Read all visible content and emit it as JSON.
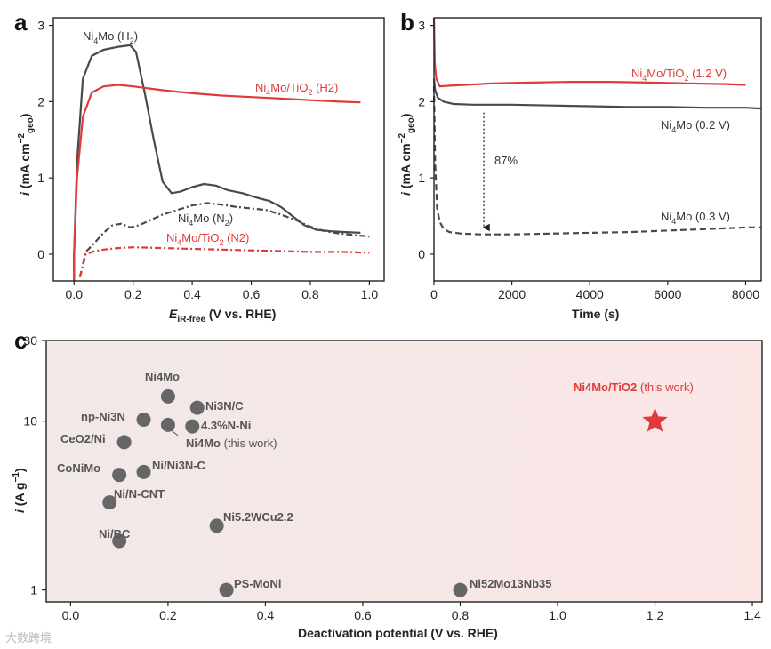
{
  "panels": {
    "a": "a",
    "b": "b",
    "c": "c"
  },
  "colors": {
    "red": "#e03a3a",
    "dark": "#4a4a4a",
    "point": "#666666",
    "bgTint": "#fbecec"
  },
  "chart_data": [
    {
      "id": "a",
      "type": "line",
      "xlabel_main": "E",
      "xlabel_sub": "iR-free",
      "xlabel_rest": " (V vs. RHE)",
      "ylabel_i": "i",
      "ylabel_rest": " (mA cm",
      "ylabel_sup": "−2",
      "ylabel_sub": "geo",
      "ylabel_close": ")",
      "xlim": [
        -0.07,
        1.05
      ],
      "ylim": [
        -0.35,
        3.1
      ],
      "xticks": [
        0.0,
        0.2,
        0.4,
        0.6,
        0.8,
        1.0
      ],
      "xtick_labels": [
        "0.0",
        "0.2",
        "0.4",
        "0.6",
        "0.8",
        "1.0"
      ],
      "yticks": [
        0,
        1,
        2,
        3
      ],
      "ytick_labels": [
        "0",
        "1",
        "2",
        "3"
      ],
      "series": [
        {
          "name": "Ni4Mo (H2)",
          "color": "#4a4a4a",
          "dash": "solid",
          "x": [
            0.0,
            0.0,
            0.01,
            0.03,
            0.06,
            0.1,
            0.15,
            0.19,
            0.21,
            0.24,
            0.27,
            0.3,
            0.33,
            0.36,
            0.4,
            0.44,
            0.48,
            0.52,
            0.57,
            0.62,
            0.66,
            0.7,
            0.74,
            0.78,
            0.82,
            0.87,
            0.92,
            0.97
          ],
          "y": [
            -0.35,
            0.0,
            1.2,
            2.3,
            2.6,
            2.68,
            2.72,
            2.74,
            2.65,
            2.1,
            1.5,
            0.95,
            0.8,
            0.82,
            0.88,
            0.92,
            0.9,
            0.84,
            0.8,
            0.74,
            0.7,
            0.62,
            0.5,
            0.38,
            0.32,
            0.3,
            0.29,
            0.28
          ]
        },
        {
          "name": "Ni4Mo/TiO2 (H2)",
          "color": "#e03a3a",
          "dash": "solid",
          "x": [
            0.0,
            0.0,
            0.01,
            0.03,
            0.06,
            0.1,
            0.15,
            0.2,
            0.3,
            0.4,
            0.5,
            0.6,
            0.7,
            0.8,
            0.9,
            0.97
          ],
          "y": [
            -0.35,
            0.0,
            1.0,
            1.8,
            2.12,
            2.2,
            2.22,
            2.2,
            2.15,
            2.11,
            2.08,
            2.06,
            2.04,
            2.02,
            2.0,
            1.99
          ]
        },
        {
          "name": "Ni4Mo (N2)",
          "color": "#4a4a4a",
          "dash": "dashdot",
          "x": [
            0.02,
            0.04,
            0.07,
            0.1,
            0.13,
            0.16,
            0.19,
            0.22,
            0.26,
            0.3,
            0.35,
            0.4,
            0.45,
            0.5,
            0.55,
            0.6,
            0.65,
            0.7,
            0.75,
            0.8,
            0.85,
            0.9,
            0.95,
            1.0
          ],
          "y": [
            -0.3,
            0.03,
            0.15,
            0.28,
            0.38,
            0.4,
            0.35,
            0.38,
            0.45,
            0.52,
            0.58,
            0.64,
            0.67,
            0.65,
            0.62,
            0.6,
            0.58,
            0.52,
            0.45,
            0.36,
            0.3,
            0.27,
            0.25,
            0.23
          ]
        },
        {
          "name": "Ni4Mo/TiO2 (N2)",
          "color": "#e03a3a",
          "dash": "dashdot",
          "x": [
            0.02,
            0.04,
            0.07,
            0.1,
            0.15,
            0.2,
            0.3,
            0.4,
            0.5,
            0.6,
            0.7,
            0.8,
            0.9,
            1.0
          ],
          "y": [
            -0.3,
            0.0,
            0.04,
            0.06,
            0.08,
            0.09,
            0.08,
            0.07,
            0.06,
            0.05,
            0.04,
            0.03,
            0.03,
            0.02
          ]
        }
      ],
      "annotations": [
        {
          "pre": "Ni",
          "sub": "4",
          "post": "Mo (H",
          "sub2": "2",
          "end": ")",
          "color": "dark"
        },
        {
          "pre": "Ni",
          "sub": "4",
          "post": "Mo/TiO",
          "sub2": "2",
          "end": " (H2)",
          "color": "red"
        },
        {
          "pre": "Ni",
          "sub": "4",
          "post": "Mo (N",
          "sub2": "2",
          "end": ")",
          "color": "dark"
        },
        {
          "pre": "Ni",
          "sub": "4",
          "post": "Mo/TiO",
          "sub2": "2",
          "end": " (N2)",
          "color": "red"
        }
      ]
    },
    {
      "id": "b",
      "type": "line",
      "xlabel": "Time (s)",
      "ylabel_i": "i",
      "ylabel_rest": " (mA cm",
      "ylabel_sup": "−2",
      "ylabel_sub": "geo",
      "ylabel_close": ")",
      "xlim": [
        0,
        8400
      ],
      "ylim": [
        -0.35,
        3.1
      ],
      "xticks": [
        0,
        2000,
        4000,
        6000,
        8000
      ],
      "xtick_labels": [
        "0",
        "2000",
        "4000",
        "6000",
        "8000"
      ],
      "yticks": [
        0,
        1,
        2,
        3
      ],
      "ytick_labels": [
        "0",
        "1",
        "2",
        "3"
      ],
      "series": [
        {
          "name": "Ni4Mo/TiO2 (1.2 V)",
          "color": "#e03a3a",
          "dash": "solid",
          "x": [
            0,
            20,
            60,
            150,
            400,
            800,
            1500,
            2500,
            3500,
            4500,
            5500,
            6500,
            7500,
            8000
          ],
          "y": [
            3.1,
            2.5,
            2.3,
            2.2,
            2.21,
            2.22,
            2.24,
            2.25,
            2.26,
            2.26,
            2.25,
            2.24,
            2.23,
            2.22
          ]
        },
        {
          "name": "Ni4Mo (0.2 V)",
          "color": "#4a4a4a",
          "dash": "solid",
          "x": [
            0,
            30,
            100,
            250,
            500,
            1000,
            2000,
            3000,
            4000,
            5000,
            6000,
            7000,
            8000,
            8400
          ],
          "y": [
            2.3,
            2.15,
            2.05,
            2.0,
            1.97,
            1.96,
            1.96,
            1.95,
            1.94,
            1.93,
            1.93,
            1.92,
            1.92,
            1.91
          ]
        },
        {
          "name": "Ni4Mo (0.3 V)",
          "color": "#4a4a4a",
          "dash": "dashed",
          "x": [
            0,
            30,
            80,
            150,
            250,
            400,
            700,
            1200,
            2000,
            3000,
            4000,
            5000,
            6000,
            7000,
            8000,
            8400
          ],
          "y": [
            2.2,
            1.2,
            0.6,
            0.42,
            0.33,
            0.29,
            0.27,
            0.26,
            0.26,
            0.27,
            0.28,
            0.29,
            0.31,
            0.33,
            0.35,
            0.35
          ]
        }
      ],
      "arrow": {
        "x": 1280,
        "y_from": 1.95,
        "y_to": 0.28,
        "label": "87%"
      },
      "annotations": [
        {
          "pre": "Ni",
          "sub": "4",
          "post": "Mo/TiO",
          "sub2": "2",
          "end": " (1.2 V)",
          "color": "red"
        },
        {
          "pre": "Ni",
          "sub": "4",
          "post": "Mo (0.2 V)",
          "color": "dark"
        },
        {
          "pre": "Ni",
          "sub": "4",
          "post": "Mo (0.3 V)",
          "color": "dark"
        }
      ]
    },
    {
      "id": "c",
      "type": "scatter",
      "xlabel": "Deactivation potential (V vs. RHE)",
      "ylabel_i": "i",
      "ylabel_rest": " (A g",
      "ylabel_sup": "−1",
      "ylabel_close": ")",
      "yscale": "log",
      "xlim": [
        -0.05,
        1.42
      ],
      "ylim": [
        0.85,
        30
      ],
      "xticks": [
        0.0,
        0.2,
        0.4,
        0.6,
        0.8,
        1.0,
        1.2,
        1.4
      ],
      "xtick_labels": [
        "0.0",
        "0.2",
        "0.4",
        "0.6",
        "0.8",
        "1.0",
        "1.2",
        "1.4"
      ],
      "yticks": [
        1,
        10,
        30
      ],
      "ytick_labels": [
        "1",
        "10",
        "30"
      ],
      "points": [
        {
          "label": "Ni4Mo",
          "x": 0.2,
          "y": 14.0
        },
        {
          "label": "Ni3N/C",
          "x": 0.26,
          "y": 12.0
        },
        {
          "label": "np-Ni3N",
          "x": 0.15,
          "y": 10.2
        },
        {
          "label": "Ni4Mo (this work)",
          "x": 0.2,
          "y": 9.5
        },
        {
          "label": "4.3%N-Ni",
          "x": 0.25,
          "y": 9.3
        },
        {
          "label": "CeO2/Ni",
          "x": 0.11,
          "y": 7.5
        },
        {
          "label": "Ni/Ni3N-C",
          "x": 0.15,
          "y": 5.0
        },
        {
          "label": "CoNiMo",
          "x": 0.1,
          "y": 4.8
        },
        {
          "label": "Ni/N-CNT",
          "x": 0.08,
          "y": 3.3
        },
        {
          "label": "Ni5.2WCu2.2",
          "x": 0.3,
          "y": 2.4
        },
        {
          "label": "Ni/BC",
          "x": 0.1,
          "y": 1.95
        },
        {
          "label": "PS-MoNi",
          "x": 0.32,
          "y": 1.0
        },
        {
          "label": "Ni52Mo13Nb35",
          "x": 0.8,
          "y": 1.0
        }
      ],
      "highlight": {
        "label": "Ni4Mo/TiO2 (this work)",
        "x": 1.2,
        "y": 10.0,
        "marker": "star"
      },
      "labels": {
        "ni4mo": "Ni4Mo",
        "ni3nc": "Ni3N/C",
        "npni3n": "np-Ni3N",
        "n43": "4.3%N-Ni",
        "ni4mo_tw": "Ni4Mo",
        "tw": " (this work)",
        "ceo2": "CeO2/Ni",
        "nini3nc": "Ni/Ni3N-C",
        "conimo": "CoNiMo",
        "nincnt": "Ni/N-CNT",
        "niwcu": "Ni5.2WCu2.2",
        "nibc": "Ni/BC",
        "psmoni": "PS-MoNi",
        "nimonb": "Ni52Mo13Nb35",
        "star_main": "Ni4Mo/TiO2",
        "star_tw": " (this work)"
      }
    }
  ],
  "watermark": "大数跨境"
}
